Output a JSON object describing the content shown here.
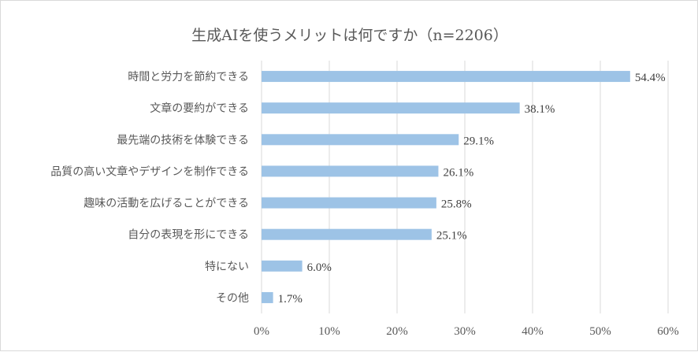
{
  "chart_data": {
    "type": "bar",
    "orientation": "horizontal",
    "title": "生成AIを使うメリットは何ですか（n=2206）",
    "categories": [
      "時間と労力を節約できる",
      "文章の要約ができる",
      "最先端の技術を体験できる",
      "品質の高い文章やデザインを制作できる",
      "趣味の活動を広げることができる",
      "自分の表現を形にできる",
      "特にない",
      "その他"
    ],
    "values": [
      54.4,
      38.1,
      29.1,
      26.1,
      25.8,
      25.1,
      6.0,
      1.7
    ],
    "data_labels": [
      "54.4%",
      "38.1%",
      "29.1%",
      "26.1%",
      "25.8%",
      "25.1%",
      "6.0%",
      "1.7%"
    ],
    "xlim": [
      0,
      60
    ],
    "x_ticks": [
      "0%",
      "10%",
      "20%",
      "30%",
      "40%",
      "50%",
      "60%"
    ],
    "grid": true,
    "legend": "none",
    "bar_color": "#9dc3e6"
  }
}
